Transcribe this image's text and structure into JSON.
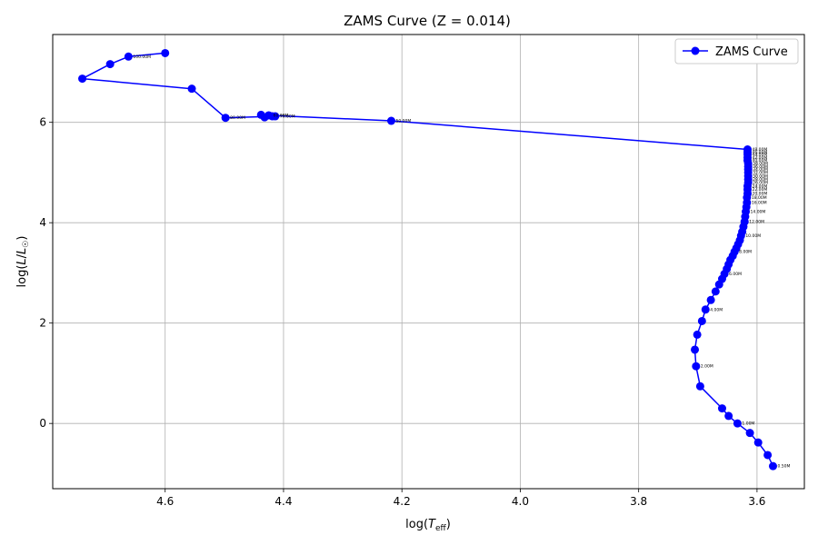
{
  "chart_data": {
    "type": "line",
    "title": "ZAMS Curve (Z = 0.014)",
    "xlabel": "log(T_eff)",
    "ylabel": "log(L/L⊙)",
    "x_inverted": true,
    "xlim": [
      4.79,
      3.52
    ],
    "ylim": [
      -1.3,
      7.75
    ],
    "xticks": [
      4.6,
      4.4,
      4.2,
      4.0,
      3.8,
      3.6
    ],
    "yticks": [
      0,
      2,
      4,
      6
    ],
    "grid": true,
    "legend": {
      "position": "top-right",
      "entries": [
        "ZAMS Curve"
      ]
    },
    "series": [
      {
        "name": "ZAMS Curve",
        "color": "#0000ff",
        "marker": "circle",
        "points": [
          [
            3.573,
            -0.85
          ],
          [
            3.582,
            -0.63
          ],
          [
            3.598,
            -0.38
          ],
          [
            3.612,
            -0.19
          ],
          [
            3.633,
            0.0
          ],
          [
            3.648,
            0.15
          ],
          [
            3.659,
            0.3
          ],
          [
            3.696,
            0.74
          ],
          [
            3.703,
            1.14
          ],
          [
            3.705,
            1.47
          ],
          [
            3.701,
            1.77
          ],
          [
            3.693,
            2.04
          ],
          [
            3.687,
            2.27
          ],
          [
            3.678,
            2.46
          ],
          [
            3.67,
            2.63
          ],
          [
            3.664,
            2.77
          ],
          [
            3.659,
            2.88
          ],
          [
            3.655,
            2.98
          ],
          [
            3.651,
            3.08
          ],
          [
            3.648,
            3.17
          ],
          [
            3.645,
            3.26
          ],
          [
            3.641,
            3.34
          ],
          [
            3.638,
            3.42
          ],
          [
            3.635,
            3.49
          ],
          [
            3.632,
            3.57
          ],
          [
            3.629,
            3.65
          ],
          [
            3.627,
            3.74
          ],
          [
            3.625,
            3.82
          ],
          [
            3.623,
            3.92
          ],
          [
            3.621,
            4.02
          ],
          [
            3.62,
            4.12
          ],
          [
            3.619,
            4.22
          ],
          [
            3.618,
            4.31
          ],
          [
            3.617,
            4.4
          ],
          [
            3.617,
            4.5
          ],
          [
            3.616,
            4.58
          ],
          [
            3.616,
            4.66
          ],
          [
            3.616,
            4.73
          ],
          [
            3.615,
            4.8
          ],
          [
            3.615,
            4.86
          ],
          [
            3.615,
            4.93
          ],
          [
            3.615,
            5.0
          ],
          [
            3.615,
            5.06
          ],
          [
            3.615,
            5.12
          ],
          [
            3.615,
            5.18
          ],
          [
            3.616,
            5.24
          ],
          [
            3.616,
            5.3
          ],
          [
            3.616,
            5.36
          ],
          [
            3.616,
            5.41
          ],
          [
            3.616,
            5.46
          ],
          [
            4.218,
            6.03
          ],
          [
            4.425,
            6.14
          ],
          [
            4.414,
            6.12
          ],
          [
            4.432,
            6.1
          ],
          [
            4.438,
            6.15
          ],
          [
            4.419,
            6.12
          ],
          [
            4.498,
            6.09
          ],
          [
            4.555,
            6.67
          ],
          [
            4.74,
            6.87
          ],
          [
            4.693,
            7.16
          ],
          [
            4.662,
            7.31
          ],
          [
            4.6,
            7.38
          ]
        ]
      }
    ],
    "annotations": [
      {
        "x": 3.573,
        "y": -0.85,
        "text": "0.50M"
      },
      {
        "x": 3.633,
        "y": 0.0,
        "text": "1.00M"
      },
      {
        "x": 3.703,
        "y": 1.14,
        "text": "2.00M"
      },
      {
        "x": 3.687,
        "y": 2.27,
        "text": "4.00M"
      },
      {
        "x": 3.655,
        "y": 2.98,
        "text": "6.00M"
      },
      {
        "x": 3.638,
        "y": 3.42,
        "text": "8.00M"
      },
      {
        "x": 3.627,
        "y": 3.74,
        "text": "10.00M"
      },
      {
        "x": 3.621,
        "y": 4.02,
        "text": "12.00M"
      },
      {
        "x": 3.619,
        "y": 4.22,
        "text": "14.00M"
      },
      {
        "x": 3.617,
        "y": 4.4,
        "text": "16.00M"
      },
      {
        "x": 3.617,
        "y": 4.5,
        "text": "18.00M"
      },
      {
        "x": 3.616,
        "y": 4.58,
        "text": "20.00M"
      },
      {
        "x": 3.616,
        "y": 4.66,
        "text": "22.00M"
      },
      {
        "x": 3.616,
        "y": 4.73,
        "text": "24.00M"
      },
      {
        "x": 3.615,
        "y": 4.8,
        "text": "26.00M"
      },
      {
        "x": 3.615,
        "y": 4.86,
        "text": "28.00M"
      },
      {
        "x": 3.615,
        "y": 4.93,
        "text": "30.00M"
      },
      {
        "x": 3.615,
        "y": 5.0,
        "text": "32.00M"
      },
      {
        "x": 3.615,
        "y": 5.06,
        "text": "34.00M"
      },
      {
        "x": 3.615,
        "y": 5.12,
        "text": "36.00M"
      },
      {
        "x": 3.615,
        "y": 5.18,
        "text": "38.00M"
      },
      {
        "x": 3.616,
        "y": 5.24,
        "text": "40.00M"
      },
      {
        "x": 3.616,
        "y": 5.3,
        "text": "42.00M"
      },
      {
        "x": 3.616,
        "y": 5.36,
        "text": "44.00M"
      },
      {
        "x": 3.616,
        "y": 5.41,
        "text": "46.00M"
      },
      {
        "x": 3.616,
        "y": 5.46,
        "text": "48.00M"
      },
      {
        "x": 4.218,
        "y": 6.03,
        "text": "50.00M"
      },
      {
        "x": 4.425,
        "y": 6.14,
        "text": "60.00M"
      },
      {
        "x": 4.414,
        "y": 6.12,
        "text": "70.00M"
      },
      {
        "x": 4.498,
        "y": 6.09,
        "text": "80.00M"
      },
      {
        "x": 4.662,
        "y": 7.31,
        "text": "100.00M"
      }
    ]
  }
}
